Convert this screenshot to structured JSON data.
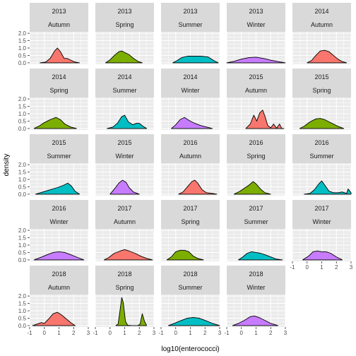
{
  "chart_data": {
    "type": "area",
    "subtype": "density",
    "xlabel": "log10(enterococci)",
    "ylabel": "density",
    "xlim": [
      -1,
      3
    ],
    "ylim": [
      0,
      2
    ],
    "x_ticks": [
      -1,
      0,
      1,
      2,
      3
    ],
    "y_ticks": [
      0.0,
      0.5,
      1.0,
      1.5,
      2.0
    ],
    "y_tick_labels": [
      "0.0",
      "0.5",
      "1.0",
      "1.5",
      "2.0"
    ],
    "grid": true,
    "layout": {
      "columns": 5,
      "rows": 5
    },
    "season_colors": {
      "Autumn": "#F8766D",
      "Spring": "#7CAE00",
      "Summer": "#00BFC4",
      "Winter": "#C77CFF"
    },
    "panels": [
      {
        "year": "2013",
        "season": "Autumn",
        "curve": [
          [
            -0.3,
            0
          ],
          [
            0.1,
            0.05
          ],
          [
            0.4,
            0.3
          ],
          [
            0.7,
            0.8
          ],
          [
            0.9,
            1.0
          ],
          [
            1.1,
            0.75
          ],
          [
            1.35,
            0.3
          ],
          [
            1.55,
            0.3
          ],
          [
            1.8,
            0.18
          ],
          [
            2.1,
            0.05
          ],
          [
            2.4,
            0
          ]
        ]
      },
      {
        "year": "2013",
        "season": "Spring",
        "curve": [
          [
            -0.3,
            0
          ],
          [
            0.0,
            0.2
          ],
          [
            0.3,
            0.5
          ],
          [
            0.6,
            0.75
          ],
          [
            0.8,
            0.8
          ],
          [
            1.0,
            0.7
          ],
          [
            1.3,
            0.55
          ],
          [
            1.6,
            0.3
          ],
          [
            1.9,
            0.1
          ],
          [
            2.2,
            0
          ]
        ]
      },
      {
        "year": "2013",
        "season": "Summer",
        "curve": [
          [
            -0.2,
            0
          ],
          [
            0.1,
            0.15
          ],
          [
            0.4,
            0.35
          ],
          [
            0.8,
            0.45
          ],
          [
            1.2,
            0.45
          ],
          [
            1.7,
            0.45
          ],
          [
            2.2,
            0.4
          ],
          [
            2.6,
            0.15
          ],
          [
            2.9,
            0
          ]
        ]
      },
      {
        "year": "2013",
        "season": "Winter",
        "curve": [
          [
            -1.0,
            0
          ],
          [
            -0.5,
            0.1
          ],
          [
            0.0,
            0.25
          ],
          [
            0.5,
            0.35
          ],
          [
            1.0,
            0.38
          ],
          [
            1.5,
            0.3
          ],
          [
            2.0,
            0.18
          ],
          [
            2.5,
            0.08
          ],
          [
            3.0,
            0
          ]
        ]
      },
      {
        "year": "2014",
        "season": "Autumn",
        "curve": [
          [
            0.0,
            0
          ],
          [
            0.3,
            0.15
          ],
          [
            0.6,
            0.5
          ],
          [
            0.9,
            0.8
          ],
          [
            1.2,
            0.85
          ],
          [
            1.5,
            0.75
          ],
          [
            1.8,
            0.5
          ],
          [
            2.1,
            0.25
          ],
          [
            2.4,
            0.08
          ],
          [
            2.7,
            0
          ]
        ]
      },
      {
        "year": "2014",
        "season": "Spring",
        "curve": [
          [
            -0.7,
            0
          ],
          [
            -0.3,
            0.2
          ],
          [
            0.0,
            0.4
          ],
          [
            0.4,
            0.6
          ],
          [
            0.8,
            0.75
          ],
          [
            1.1,
            0.6
          ],
          [
            1.4,
            0.3
          ],
          [
            1.8,
            0.1
          ],
          [
            2.2,
            0
          ]
        ]
      },
      {
        "year": "2014",
        "season": "Summer",
        "curve": [
          [
            -0.2,
            0
          ],
          [
            0.2,
            0.1
          ],
          [
            0.5,
            0.35
          ],
          [
            0.8,
            0.8
          ],
          [
            1.0,
            0.9
          ],
          [
            1.25,
            0.45
          ],
          [
            1.55,
            0.25
          ],
          [
            1.8,
            0.35
          ],
          [
            2.0,
            0.35
          ],
          [
            2.25,
            0.15
          ],
          [
            2.5,
            0
          ]
        ]
      },
      {
        "year": "2014",
        "season": "Winter",
        "curve": [
          [
            -0.3,
            0
          ],
          [
            0.0,
            0.25
          ],
          [
            0.3,
            0.6
          ],
          [
            0.6,
            0.75
          ],
          [
            0.9,
            0.55
          ],
          [
            1.3,
            0.35
          ],
          [
            1.7,
            0.2
          ],
          [
            2.1,
            0.1
          ],
          [
            2.5,
            0
          ]
        ]
      },
      {
        "year": "2015",
        "season": "Autumn",
        "curve": [
          [
            0.3,
            0
          ],
          [
            0.6,
            0.3
          ],
          [
            0.85,
            0.9
          ],
          [
            1.05,
            0.5
          ],
          [
            1.25,
            1.05
          ],
          [
            1.45,
            1.25
          ],
          [
            1.6,
            0.85
          ],
          [
            1.8,
            0.2
          ],
          [
            2.0,
            0.05
          ],
          [
            2.2,
            0.3
          ],
          [
            2.4,
            0.02
          ],
          [
            2.6,
            0.3
          ],
          [
            2.75,
            0.01
          ],
          [
            2.9,
            0
          ]
        ]
      },
      {
        "year": "2015",
        "season": "Spring",
        "curve": [
          [
            -0.5,
            0
          ],
          [
            -0.2,
            0.15
          ],
          [
            0.2,
            0.45
          ],
          [
            0.6,
            0.65
          ],
          [
            0.9,
            0.68
          ],
          [
            1.2,
            0.6
          ],
          [
            1.5,
            0.45
          ],
          [
            1.8,
            0.3
          ],
          [
            2.1,
            0.15
          ],
          [
            2.5,
            0
          ]
        ]
      },
      {
        "year": "2015",
        "season": "Summer",
        "curve": [
          [
            -0.6,
            0
          ],
          [
            -0.1,
            0.15
          ],
          [
            0.4,
            0.3
          ],
          [
            0.9,
            0.45
          ],
          [
            1.3,
            0.6
          ],
          [
            1.6,
            0.75
          ],
          [
            1.85,
            0.55
          ],
          [
            2.1,
            0.2
          ],
          [
            2.4,
            0
          ]
        ]
      },
      {
        "year": "2015",
        "season": "Winter",
        "curve": [
          [
            0.0,
            0
          ],
          [
            0.3,
            0.35
          ],
          [
            0.6,
            0.75
          ],
          [
            0.85,
            0.95
          ],
          [
            1.1,
            0.8
          ],
          [
            1.3,
            0.45
          ],
          [
            1.6,
            0.15
          ],
          [
            2.0,
            0
          ]
        ]
      },
      {
        "year": "2016",
        "season": "Autumn",
        "curve": [
          [
            0.2,
            0
          ],
          [
            0.5,
            0.15
          ],
          [
            0.8,
            0.5
          ],
          [
            1.1,
            0.85
          ],
          [
            1.3,
            0.95
          ],
          [
            1.5,
            0.75
          ],
          [
            1.8,
            0.3
          ],
          [
            2.1,
            0.1
          ],
          [
            2.5,
            0.05
          ],
          [
            2.8,
            0
          ]
        ]
      },
      {
        "year": "2016",
        "season": "Spring",
        "curve": [
          [
            -0.5,
            0
          ],
          [
            -0.1,
            0.2
          ],
          [
            0.2,
            0.4
          ],
          [
            0.5,
            0.6
          ],
          [
            0.8,
            0.85
          ],
          [
            1.0,
            0.7
          ],
          [
            1.3,
            0.35
          ],
          [
            1.6,
            0.1
          ],
          [
            2.0,
            0
          ]
        ]
      },
      {
        "year": "2016",
        "season": "Summer",
        "curve": [
          [
            -0.2,
            0
          ],
          [
            0.2,
            0.05
          ],
          [
            0.5,
            0.3
          ],
          [
            0.8,
            0.7
          ],
          [
            1.0,
            0.9
          ],
          [
            1.25,
            0.55
          ],
          [
            1.5,
            0.2
          ],
          [
            1.8,
            0.1
          ],
          [
            2.1,
            0.1
          ],
          [
            2.4,
            0.15
          ],
          [
            2.7,
            0.05
          ],
          [
            2.8,
            0.35
          ],
          [
            3.0,
            0.1
          ]
        ]
      },
      {
        "year": "2016",
        "season": "Winter",
        "curve": [
          [
            -0.7,
            0
          ],
          [
            -0.3,
            0.15
          ],
          [
            0.2,
            0.35
          ],
          [
            0.6,
            0.5
          ],
          [
            1.0,
            0.55
          ],
          [
            1.4,
            0.5
          ],
          [
            1.8,
            0.35
          ],
          [
            2.3,
            0.15
          ],
          [
            2.7,
            0
          ]
        ]
      },
      {
        "year": "2017",
        "season": "Autumn",
        "curve": [
          [
            -0.4,
            0
          ],
          [
            -0.1,
            0.15
          ],
          [
            0.3,
            0.45
          ],
          [
            0.7,
            0.6
          ],
          [
            1.0,
            0.7
          ],
          [
            1.3,
            0.6
          ],
          [
            1.7,
            0.45
          ],
          [
            2.1,
            0.25
          ],
          [
            2.5,
            0.1
          ],
          [
            2.9,
            0
          ]
        ]
      },
      {
        "year": "2017",
        "season": "Spring",
        "curve": [
          [
            -0.6,
            0
          ],
          [
            -0.3,
            0.2
          ],
          [
            0.0,
            0.55
          ],
          [
            0.3,
            0.65
          ],
          [
            0.6,
            0.65
          ],
          [
            0.9,
            0.55
          ],
          [
            1.2,
            0.25
          ],
          [
            1.5,
            0.1
          ],
          [
            1.9,
            0
          ]
        ]
      },
      {
        "year": "2017",
        "season": "Summer",
        "curve": [
          [
            -0.2,
            0
          ],
          [
            0.1,
            0.2
          ],
          [
            0.4,
            0.45
          ],
          [
            0.7,
            0.55
          ],
          [
            1.0,
            0.5
          ],
          [
            1.3,
            0.45
          ],
          [
            1.6,
            0.35
          ],
          [
            2.0,
            0.2
          ],
          [
            2.4,
            0.05
          ],
          [
            2.8,
            0
          ]
        ]
      },
      {
        "year": "2017",
        "season": "Winter",
        "curve": [
          [
            -0.3,
            0
          ],
          [
            0.1,
            0.25
          ],
          [
            0.4,
            0.55
          ],
          [
            0.7,
            0.6
          ],
          [
            1.0,
            0.55
          ],
          [
            1.3,
            0.55
          ],
          [
            1.6,
            0.45
          ],
          [
            2.0,
            0.2
          ],
          [
            2.4,
            0
          ]
        ]
      },
      {
        "year": "2018",
        "season": "Autumn",
        "curve": [
          [
            -0.8,
            0
          ],
          [
            -0.5,
            0.1
          ],
          [
            -0.2,
            0.2
          ],
          [
            0.0,
            0.15
          ],
          [
            0.3,
            0.45
          ],
          [
            0.6,
            0.8
          ],
          [
            0.9,
            0.9
          ],
          [
            1.2,
            0.7
          ],
          [
            1.5,
            0.45
          ],
          [
            1.8,
            0.2
          ],
          [
            2.1,
            0
          ]
        ]
      },
      {
        "year": "2018",
        "season": "Spring",
        "curve": [
          [
            0.4,
            0
          ],
          [
            0.55,
            0.1
          ],
          [
            0.68,
            1.0
          ],
          [
            0.8,
            1.9
          ],
          [
            0.92,
            1.5
          ],
          [
            1.05,
            0.3
          ],
          [
            1.2,
            0.02
          ],
          [
            1.5,
            0.0
          ],
          [
            1.9,
            0.0
          ],
          [
            2.05,
            0.1
          ],
          [
            2.2,
            0.8
          ],
          [
            2.35,
            0.3
          ],
          [
            2.5,
            0
          ]
        ]
      },
      {
        "year": "2018",
        "season": "Summer",
        "curve": [
          [
            -0.5,
            0
          ],
          [
            -0.1,
            0.15
          ],
          [
            0.4,
            0.35
          ],
          [
            0.8,
            0.5
          ],
          [
            1.2,
            0.55
          ],
          [
            1.6,
            0.5
          ],
          [
            2.0,
            0.35
          ],
          [
            2.5,
            0.15
          ],
          [
            3.0,
            0
          ]
        ]
      },
      {
        "year": "2018",
        "season": "Winter",
        "curve": [
          [
            -0.6,
            0
          ],
          [
            -0.2,
            0.15
          ],
          [
            0.2,
            0.35
          ],
          [
            0.6,
            0.6
          ],
          [
            0.9,
            0.65
          ],
          [
            1.2,
            0.55
          ],
          [
            1.6,
            0.35
          ],
          [
            2.0,
            0.15
          ],
          [
            2.5,
            0
          ]
        ]
      }
    ]
  }
}
